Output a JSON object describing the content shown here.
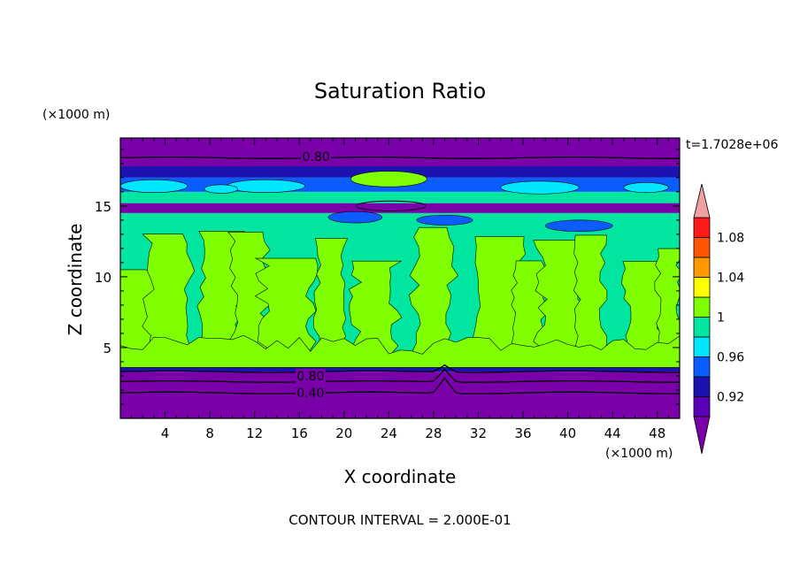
{
  "chart_data": {
    "type": "heatmap",
    "title": "Saturation Ratio",
    "xlabel": "X coordinate",
    "ylabel": "Z coordinate",
    "x_unit": "(×1000 m)",
    "y_unit": "(×1000 m)",
    "time_label": "t=1.7028e+06",
    "footer": "CONTOUR INTERVAL = 2.000E-01",
    "xlim": [
      0,
      50
    ],
    "ylim": [
      0,
      19.8
    ],
    "x_ticks": [
      4,
      8,
      12,
      16,
      20,
      24,
      28,
      32,
      36,
      40,
      44,
      48
    ],
    "y_ticks": [
      5,
      10,
      15
    ],
    "colorbar": {
      "boundaries": [
        0.9,
        0.92,
        0.94,
        0.96,
        0.98,
        1.0,
        1.02,
        1.04,
        1.06,
        1.08,
        1.1
      ],
      "tick_labels": [
        "0.92",
        "0.96",
        "1",
        "1.04",
        "1.08"
      ],
      "tick_values": [
        0.92,
        0.96,
        1.0,
        1.04,
        1.08
      ],
      "colors": [
        "#5b00b6",
        "#1a13b0",
        "#0a5cff",
        "#00e6ff",
        "#00e6a0",
        "#80ff00",
        "#ffff00",
        "#ff9900",
        "#ff5500",
        "#ff1a1a"
      ],
      "under_color": "#7a00aa",
      "over_color": "#f0a0a0",
      "extend": "both"
    },
    "contour_labels": [
      {
        "text": "0.80",
        "x": 17.5,
        "z": 18.5
      },
      {
        "text": "0.80",
        "x": 17.0,
        "z": 3.0
      },
      {
        "text": "0.40",
        "x": 17.0,
        "z": 1.8
      }
    ],
    "regions": [
      {
        "z_range": [
          0,
          3.3
        ],
        "value": "<0.90"
      },
      {
        "z_range": [
          3.3,
          3.6
        ],
        "value": "0.92"
      },
      {
        "z_range": [
          3.6,
          14.5
        ],
        "value": "0.98 to 1.02"
      },
      {
        "z_range": [
          14.5,
          16.0
        ],
        "value": "<0.90"
      },
      {
        "z_range": [
          16.0,
          17.8
        ],
        "value": "0.92 to 0.98"
      },
      {
        "z_range": [
          17.8,
          19.8
        ],
        "value": "<0.90"
      }
    ]
  }
}
